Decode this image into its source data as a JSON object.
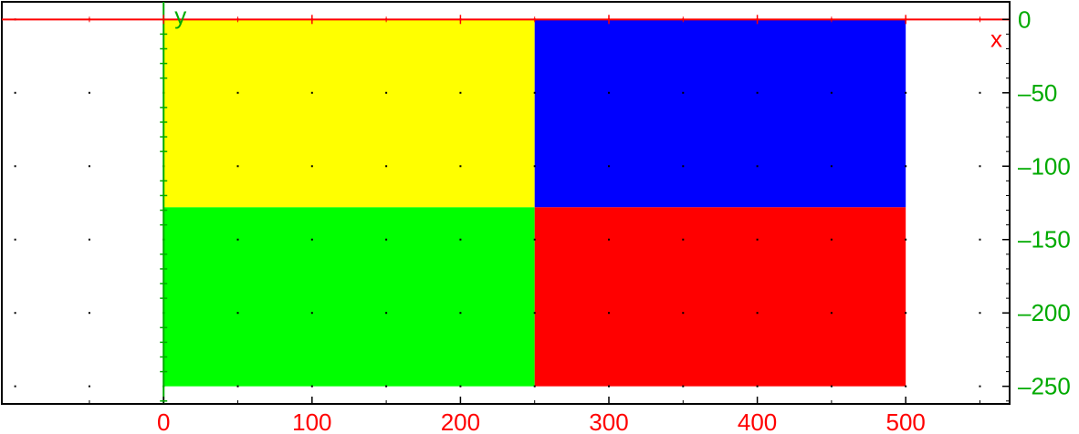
{
  "chart_data": {
    "type": "heatmap",
    "xlabel": "x",
    "ylabel": "y",
    "xlim": [
      -109,
      570
    ],
    "ylim": [
      -262,
      12
    ],
    "x_ticks": [
      0,
      100,
      200,
      300,
      400,
      500
    ],
    "x_tick_labels": [
      "0",
      "100",
      "200",
      "300",
      "400",
      "500"
    ],
    "y_ticks": [
      0,
      -50,
      -100,
      -150,
      -200,
      -250
    ],
    "y_tick_labels": [
      "0",
      "–50",
      "–100",
      "–150",
      "–200",
      "–250"
    ],
    "grid": "dotted",
    "grid_step": 50,
    "cells": [
      {
        "name": "yellow-block",
        "x0": 0,
        "x1": 250,
        "y0": 0,
        "y1": -128,
        "color": "#ffff00"
      },
      {
        "name": "blue-block",
        "x0": 250,
        "x1": 500,
        "y0": 0,
        "y1": -128,
        "color": "#0000ff"
      },
      {
        "name": "green-block",
        "x0": 0,
        "x1": 250,
        "y0": -128,
        "y1": -250,
        "color": "#00ff00"
      },
      {
        "name": "red-block",
        "x0": 250,
        "x1": 500,
        "y0": -128,
        "y1": -250,
        "color": "#ff0000"
      }
    ],
    "colors": {
      "x_axis": "#ff0000",
      "y_axis": "#00aa00",
      "x_labels": "#ff0000",
      "y_labels": "#00aa00",
      "frame": "#000000"
    }
  }
}
